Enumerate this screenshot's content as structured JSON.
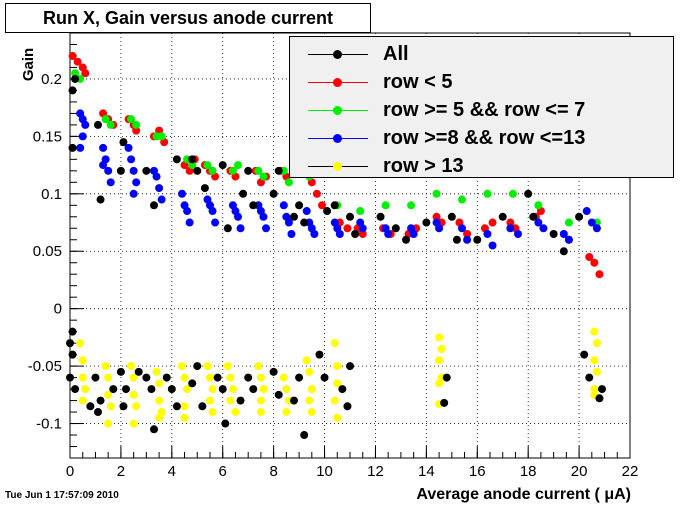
{
  "title": "Run X, Gain versus anode current",
  "timestamp": "Tue Jun  1 17:57:09 2010",
  "chart_data": {
    "type": "scatter",
    "xlabel": "Average anode current ( μA)",
    "ylabel": "Gain",
    "xlim": [
      0,
      22
    ],
    "ylim": [
      -0.13,
      0.24
    ],
    "x_ticks": [
      "0",
      "2",
      "4",
      "6",
      "8",
      "10",
      "12",
      "14",
      "16",
      "18",
      "20",
      "22"
    ],
    "y_ticks": [
      "-0.1",
      "-0.05",
      "0",
      "0.05",
      "0.1",
      "0.15",
      "0.2"
    ],
    "grid": true,
    "legend_position": "top-right",
    "legend": [
      {
        "name": "All",
        "color": "#000000",
        "line": "#000000"
      },
      {
        "name": "row < 5",
        "color": "#ff0000",
        "line": "#ff0000"
      },
      {
        "name": "row >= 5 && row <= 7",
        "color": "#00ee00",
        "line": "#00ee00"
      },
      {
        "name": "row >=8 && row <=13",
        "color": "#0000ff",
        "line": "#0000ff"
      },
      {
        "name": "row > 13",
        "color": "#ffff00",
        "line": "#000000"
      }
    ],
    "series": [
      {
        "name": "row < 5",
        "color": "#ff0000",
        "points": [
          [
            0.1,
            0.22
          ],
          [
            0.3,
            0.215
          ],
          [
            0.5,
            0.21
          ],
          [
            0.6,
            0.205
          ],
          [
            1.3,
            0.17
          ],
          [
            1.5,
            0.165
          ],
          [
            1.7,
            0.16
          ],
          [
            2.3,
            0.165
          ],
          [
            2.5,
            0.16
          ],
          [
            2.6,
            0.155
          ],
          [
            3.3,
            0.15
          ],
          [
            3.5,
            0.155
          ],
          [
            3.7,
            0.145
          ],
          [
            4.5,
            0.125
          ],
          [
            4.7,
            0.12
          ],
          [
            4.9,
            0.13
          ],
          [
            5.3,
            0.125
          ],
          [
            5.5,
            0.12
          ],
          [
            5.7,
            0.115
          ],
          [
            6.3,
            0.12
          ],
          [
            6.5,
            0.115
          ],
          [
            7.3,
            0.12
          ],
          [
            7.5,
            0.11
          ],
          [
            7.7,
            0.115
          ],
          [
            8.3,
            0.12
          ],
          [
            8.5,
            0.115
          ],
          [
            9.5,
            0.11
          ],
          [
            9.7,
            0.1
          ],
          [
            9.9,
            0.09
          ],
          [
            10.6,
            0.075
          ],
          [
            10.9,
            0.07
          ],
          [
            11.3,
            0.07
          ],
          [
            11.5,
            0.065
          ],
          [
            12.3,
            0.07
          ],
          [
            12.6,
            0.065
          ],
          [
            13.3,
            0.065
          ],
          [
            13.6,
            0.07
          ],
          [
            14.4,
            0.08
          ],
          [
            14.6,
            0.075
          ],
          [
            15.3,
            0.075
          ],
          [
            15.6,
            0.065
          ],
          [
            16.3,
            0.07
          ],
          [
            16.6,
            0.075
          ],
          [
            17.3,
            0.075
          ],
          [
            17.5,
            0.07
          ],
          [
            18.3,
            0.08
          ],
          [
            18.5,
            0.085
          ],
          [
            19.6,
            0.06
          ],
          [
            20.4,
            0.045
          ],
          [
            20.6,
            0.04
          ],
          [
            20.8,
            0.03
          ]
        ]
      },
      {
        "name": "row >= 5 && row <= 7",
        "color": "#00ee00",
        "points": [
          [
            0.2,
            0.205
          ],
          [
            0.4,
            0.2
          ],
          [
            1.4,
            0.165
          ],
          [
            1.6,
            0.16
          ],
          [
            2.4,
            0.165
          ],
          [
            2.6,
            0.16
          ],
          [
            3.4,
            0.15
          ],
          [
            3.6,
            0.15
          ],
          [
            4.6,
            0.13
          ],
          [
            4.8,
            0.125
          ],
          [
            5.4,
            0.125
          ],
          [
            5.6,
            0.12
          ],
          [
            6.4,
            0.12
          ],
          [
            6.6,
            0.125
          ],
          [
            7.4,
            0.12
          ],
          [
            7.6,
            0.115
          ],
          [
            8.4,
            0.12
          ],
          [
            8.6,
            0.11
          ],
          [
            9.4,
            0.115
          ],
          [
            9.6,
            0.12
          ],
          [
            10.5,
            0.09
          ],
          [
            11.4,
            0.085
          ],
          [
            12.4,
            0.09
          ],
          [
            13.4,
            0.09
          ],
          [
            14.4,
            0.1
          ],
          [
            15.4,
            0.095
          ],
          [
            16.4,
            0.1
          ],
          [
            17.4,
            0.1
          ],
          [
            18.4,
            0.09
          ],
          [
            19.6,
            0.075
          ],
          [
            20.7,
            0.075
          ]
        ]
      },
      {
        "name": "row >=8 && row <=13",
        "color": "#0000ff",
        "points": [
          [
            0.4,
            0.17
          ],
          [
            0.5,
            0.165
          ],
          [
            0.6,
            0.16
          ],
          [
            0.5,
            0.15
          ],
          [
            0.4,
            0.14
          ],
          [
            1.3,
            0.14
          ],
          [
            1.4,
            0.13
          ],
          [
            1.5,
            0.12
          ],
          [
            1.6,
            0.11
          ],
          [
            1.3,
            0.125
          ],
          [
            2.3,
            0.14
          ],
          [
            2.4,
            0.13
          ],
          [
            2.5,
            0.12
          ],
          [
            2.6,
            0.11
          ],
          [
            2.5,
            0.1
          ],
          [
            3.3,
            0.12
          ],
          [
            3.4,
            0.115
          ],
          [
            3.5,
            0.105
          ],
          [
            3.6,
            0.095
          ],
          [
            4.4,
            0.1
          ],
          [
            4.5,
            0.09
          ],
          [
            4.6,
            0.085
          ],
          [
            4.7,
            0.075
          ],
          [
            5.4,
            0.095
          ],
          [
            5.5,
            0.09
          ],
          [
            5.6,
            0.085
          ],
          [
            5.7,
            0.075
          ],
          [
            6.4,
            0.09
          ],
          [
            6.5,
            0.085
          ],
          [
            6.6,
            0.08
          ],
          [
            6.7,
            0.07
          ],
          [
            7.4,
            0.09
          ],
          [
            7.5,
            0.085
          ],
          [
            7.6,
            0.08
          ],
          [
            7.7,
            0.07
          ],
          [
            8.4,
            0.09
          ],
          [
            8.5,
            0.08
          ],
          [
            8.6,
            0.075
          ],
          [
            8.7,
            0.065
          ],
          [
            9.3,
            0.085
          ],
          [
            9.4,
            0.075
          ],
          [
            9.5,
            0.07
          ],
          [
            9.6,
            0.065
          ],
          [
            10.4,
            0.075
          ],
          [
            10.5,
            0.07
          ],
          [
            10.6,
            0.065
          ],
          [
            11.4,
            0.075
          ],
          [
            11.5,
            0.07
          ],
          [
            12.4,
            0.07
          ],
          [
            12.5,
            0.065
          ],
          [
            13.4,
            0.07
          ],
          [
            13.5,
            0.065
          ],
          [
            14.4,
            0.075
          ],
          [
            14.5,
            0.07
          ],
          [
            15.4,
            0.07
          ],
          [
            15.6,
            0.06
          ],
          [
            16.4,
            0.065
          ],
          [
            16.6,
            0.055
          ],
          [
            17.3,
            0.07
          ],
          [
            17.6,
            0.065
          ],
          [
            18.4,
            0.075
          ],
          [
            18.6,
            0.07
          ],
          [
            19.4,
            0.065
          ],
          [
            19.6,
            0.06
          ],
          [
            20.3,
            0.085
          ],
          [
            20.5,
            0.075
          ],
          [
            20.7,
            0.07
          ]
        ]
      },
      {
        "name": "row > 13",
        "color": "#ffff00",
        "points": [
          [
            0.4,
            -0.03
          ],
          [
            0.5,
            -0.045
          ],
          [
            0.5,
            -0.06
          ],
          [
            0.6,
            -0.07
          ],
          [
            0.5,
            -0.08
          ],
          [
            1.4,
            -0.05
          ],
          [
            1.5,
            -0.06
          ],
          [
            1.5,
            -0.075
          ],
          [
            1.6,
            -0.085
          ],
          [
            1.5,
            -0.1
          ],
          [
            2.4,
            -0.05
          ],
          [
            2.5,
            -0.06
          ],
          [
            2.5,
            -0.075
          ],
          [
            2.6,
            -0.085
          ],
          [
            2.5,
            -0.1
          ],
          [
            3.4,
            -0.055
          ],
          [
            3.5,
            -0.065
          ],
          [
            3.5,
            -0.08
          ],
          [
            3.6,
            -0.09
          ],
          [
            3.5,
            -0.095
          ],
          [
            4.4,
            -0.05
          ],
          [
            4.5,
            -0.06
          ],
          [
            4.6,
            -0.07
          ],
          [
            4.5,
            -0.085
          ],
          [
            4.5,
            -0.095
          ],
          [
            5.4,
            -0.05
          ],
          [
            5.5,
            -0.06
          ],
          [
            5.6,
            -0.07
          ],
          [
            5.5,
            -0.08
          ],
          [
            5.6,
            -0.09
          ],
          [
            6.2,
            -0.05
          ],
          [
            6.3,
            -0.06
          ],
          [
            6.4,
            -0.07
          ],
          [
            6.3,
            -0.08
          ],
          [
            6.5,
            -0.09
          ],
          [
            7.4,
            -0.05
          ],
          [
            7.5,
            -0.06
          ],
          [
            7.6,
            -0.07
          ],
          [
            7.5,
            -0.08
          ],
          [
            7.5,
            -0.09
          ],
          [
            8.4,
            -0.06
          ],
          [
            8.5,
            -0.07
          ],
          [
            8.6,
            -0.08
          ],
          [
            8.5,
            -0.09
          ],
          [
            9.3,
            -0.045
          ],
          [
            9.4,
            -0.055
          ],
          [
            9.5,
            -0.07
          ],
          [
            9.4,
            -0.08
          ],
          [
            9.5,
            -0.09
          ],
          [
            10.4,
            -0.03
          ],
          [
            10.5,
            -0.05
          ],
          [
            10.5,
            -0.065
          ],
          [
            10.4,
            -0.08
          ],
          [
            10.5,
            -0.095
          ],
          [
            14.5,
            -0.025
          ],
          [
            14.6,
            -0.035
          ],
          [
            14.5,
            -0.045
          ],
          [
            14.6,
            -0.06
          ],
          [
            14.5,
            -0.065
          ],
          [
            14.5,
            -0.083
          ],
          [
            20.6,
            -0.02
          ],
          [
            20.7,
            -0.03
          ],
          [
            20.6,
            -0.045
          ],
          [
            20.7,
            -0.055
          ],
          [
            20.6,
            -0.07
          ],
          [
            20.6,
            -0.075
          ]
        ]
      },
      {
        "name": "All",
        "color": "#000000",
        "points": [
          [
            0.1,
            0.19
          ],
          [
            0.2,
            0.2
          ],
          [
            0.1,
            0.14
          ],
          [
            1.2,
            0.095
          ],
          [
            1.1,
            0.16
          ],
          [
            2.0,
            0.12
          ],
          [
            2.1,
            0.145
          ],
          [
            3.0,
            0.12
          ],
          [
            3.3,
            0.09
          ],
          [
            4.2,
            0.13
          ],
          [
            4.8,
            0.13
          ],
          [
            5.0,
            0.12
          ],
          [
            5.3,
            0.105
          ],
          [
            6.0,
            0.125
          ],
          [
            6.2,
            0.07
          ],
          [
            6.8,
            0.1
          ],
          [
            7.0,
            0.12
          ],
          [
            7.2,
            0.09
          ],
          [
            8.0,
            0.1
          ],
          [
            8.2,
            0.12
          ],
          [
            8.8,
            0.08
          ],
          [
            9.0,
            0.09
          ],
          [
            9.2,
            0.075
          ],
          [
            10.1,
            0.085
          ],
          [
            10.4,
            0.09
          ],
          [
            11.0,
            0.08
          ],
          [
            11.2,
            0.065
          ],
          [
            12.2,
            0.08
          ],
          [
            12.8,
            0.07
          ],
          [
            13.2,
            0.06
          ],
          [
            14.0,
            0.075
          ],
          [
            15.0,
            0.08
          ],
          [
            15.2,
            0.06
          ],
          [
            16.0,
            0.06
          ],
          [
            17.0,
            0.08
          ],
          [
            18.0,
            0.1
          ],
          [
            18.2,
            0.08
          ],
          [
            19.0,
            0.065
          ],
          [
            19.4,
            0.05
          ],
          [
            20.0,
            0.08
          ],
          [
            0.0,
            -0.03
          ],
          [
            0.1,
            -0.04
          ],
          [
            0.0,
            -0.06
          ],
          [
            0.2,
            -0.07
          ],
          [
            0.1,
            -0.02
          ],
          [
            0.8,
            -0.085
          ],
          [
            1.0,
            -0.06
          ],
          [
            1.2,
            -0.08
          ],
          [
            1.1,
            -0.09
          ],
          [
            1.7,
            -0.07
          ],
          [
            2.0,
            -0.055
          ],
          [
            2.2,
            -0.07
          ],
          [
            2.1,
            -0.085
          ],
          [
            2.7,
            -0.055
          ],
          [
            3.0,
            -0.06
          ],
          [
            3.2,
            -0.07
          ],
          [
            3.3,
            -0.105
          ],
          [
            3.8,
            -0.06
          ],
          [
            4.0,
            -0.07
          ],
          [
            4.2,
            -0.085
          ],
          [
            4.8,
            -0.065
          ],
          [
            5.0,
            -0.05
          ],
          [
            5.2,
            -0.085
          ],
          [
            5.8,
            -0.06
          ],
          [
            6.0,
            -0.07
          ],
          [
            6.1,
            -0.1
          ],
          [
            6.7,
            -0.08
          ],
          [
            7.0,
            -0.06
          ],
          [
            7.2,
            -0.07
          ],
          [
            8.0,
            -0.055
          ],
          [
            8.2,
            -0.075
          ],
          [
            8.8,
            -0.08
          ],
          [
            9.0,
            -0.06
          ],
          [
            9.2,
            -0.11
          ],
          [
            9.8,
            -0.04
          ],
          [
            10.0,
            -0.06
          ],
          [
            10.7,
            -0.07
          ],
          [
            10.9,
            -0.085
          ],
          [
            11.0,
            -0.05
          ],
          [
            14.7,
            -0.082
          ],
          [
            14.8,
            -0.06
          ],
          [
            20.2,
            -0.04
          ],
          [
            20.4,
            -0.06
          ],
          [
            20.9,
            -0.07
          ],
          [
            20.8,
            -0.078
          ]
        ]
      }
    ]
  }
}
